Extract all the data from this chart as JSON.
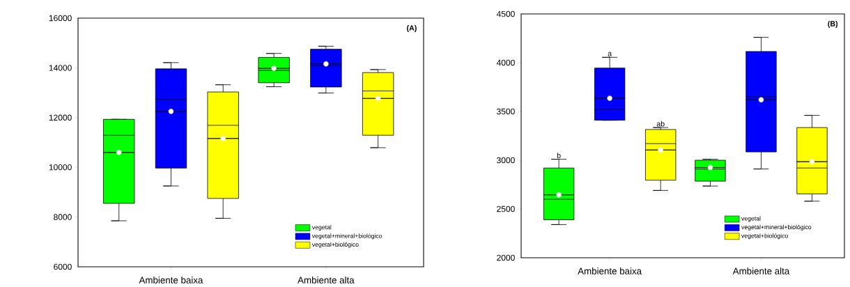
{
  "chart_data": [
    {
      "type": "box",
      "title": "(A)",
      "categories": [
        "Ambiente baixa",
        "Ambiente alta"
      ],
      "ylim": [
        6000,
        16000
      ],
      "yticks": [
        6000,
        8000,
        10000,
        12000,
        14000,
        16000
      ],
      "legend": "bottom right",
      "series": [
        {
          "name": "vegetal",
          "color": "#00ff00",
          "boxes": [
            {
              "low": 7850,
              "q1": 8550,
              "median": 11290,
              "q3": 11930,
              "high": 11930,
              "mean": 10600
            },
            {
              "low": 13240,
              "q1": 13400,
              "median": 13900,
              "q3": 14420,
              "high": 14580,
              "mean": 13980
            }
          ]
        },
        {
          "name": "vegetal+mineral+biológico",
          "color": "#0000ff",
          "boxes": [
            {
              "low": 9250,
              "q1": 9970,
              "median": 12740,
              "q3": 13960,
              "high": 14210,
              "mean": 12250
            },
            {
              "low": 12990,
              "q1": 13230,
              "median": 14090,
              "q3": 14750,
              "high": 14870,
              "mean": 14160
            }
          ]
        },
        {
          "name": "vegetal+biológico",
          "color": "#ffff00",
          "boxes": [
            {
              "low": 7950,
              "q1": 8750,
              "median": 11690,
              "q3": 13030,
              "high": 13320,
              "mean": 11160
            },
            {
              "low": 10790,
              "q1": 11290,
              "median": 13070,
              "q3": 13810,
              "high": 13930,
              "mean": 12770
            }
          ]
        }
      ]
    },
    {
      "type": "box",
      "title": "(B)",
      "categories": [
        "Ambiente baixa",
        "Ambiente alta"
      ],
      "ylim": [
        2000,
        4500
      ],
      "yticks": [
        2000,
        2500,
        3000,
        3500,
        4000,
        4500
      ],
      "legend": "bottom right",
      "annotations": [
        "b",
        "a",
        "ab"
      ],
      "series": [
        {
          "name": "vegetal",
          "color": "#00ff00",
          "boxes": [
            {
              "low": 2340,
              "q1": 2390,
              "median": 2600,
              "q3": 2920,
              "high": 3010,
              "mean": 2645
            },
            {
              "low": 2735,
              "q1": 2785,
              "median": 2910,
              "q3": 3000,
              "high": 3010,
              "mean": 2925
            }
          ]
        },
        {
          "name": "vegetal+mineral+biológico",
          "color": "#0000ff",
          "boxes": [
            {
              "low": 3410,
              "q1": 3410,
              "median": 3520,
              "q3": 3945,
              "high": 4055,
              "mean": 3635
            },
            {
              "low": 2910,
              "q1": 3085,
              "median": 3650,
              "q3": 4115,
              "high": 4260,
              "mean": 3620
            }
          ]
        },
        {
          "name": "vegetal+biológico",
          "color": "#ffff00",
          "boxes": [
            {
              "low": 2690,
              "q1": 2795,
              "median": 3170,
              "q3": 3315,
              "high": 3335,
              "mean": 3105
            },
            {
              "low": 2580,
              "q1": 2655,
              "median": 2920,
              "q3": 3335,
              "high": 3460,
              "mean": 2985
            }
          ]
        }
      ]
    }
  ]
}
